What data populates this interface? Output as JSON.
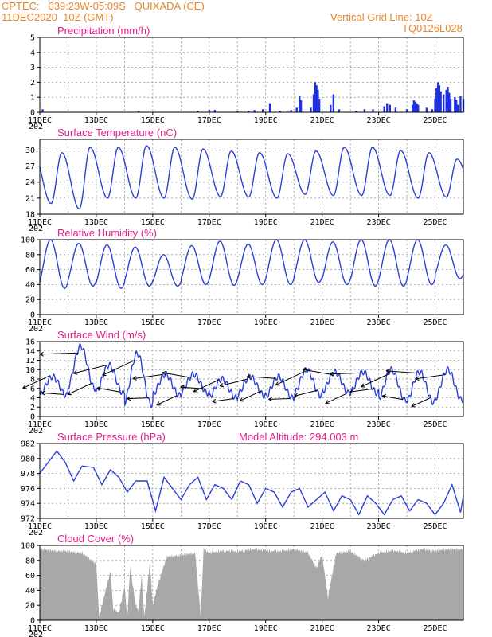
{
  "header": {
    "left_line1": "CPTEC:   039:23W-05:09S   QUIXADA (CE)",
    "left_line2": "11DEC2020  10Z (GMT)",
    "right_line1": "Vertical Grid Line: 10Z",
    "right_line2": "TQ0126L028"
  },
  "x_axis": {
    "ticks": [
      "11DEC",
      "13DEC",
      "15DEC",
      "17DEC",
      "19DEC",
      "21DEC",
      "23DEC",
      "25DEC"
    ],
    "partial_year_label": "202"
  },
  "panels": [
    {
      "id": "precip",
      "title": "Precipitation (mm/h)",
      "yticks": [
        "0",
        "1",
        "2",
        "3",
        "4",
        "5"
      ]
    },
    {
      "id": "temp",
      "title": "Surface Temperature (nC)",
      "yticks": [
        "18",
        "21",
        "24",
        "27",
        "30"
      ]
    },
    {
      "id": "rh",
      "title": "Relative Humidity (%)",
      "yticks": [
        "0",
        "20",
        "40",
        "60",
        "80",
        "100"
      ]
    },
    {
      "id": "wind",
      "title": "Surface Wind (m/s)",
      "yticks": [
        "0",
        "2",
        "4",
        "6",
        "8",
        "10",
        "12",
        "14",
        "16"
      ]
    },
    {
      "id": "pres",
      "title": "Surface Pressure (hPa)",
      "extra": "Model Altitude: 294.003 m",
      "yticks": [
        "972",
        "974",
        "976",
        "978",
        "980",
        "982"
      ]
    },
    {
      "id": "cloud",
      "title": "Cloud Cover (%)",
      "yticks": [
        "0",
        "20",
        "40",
        "60",
        "80",
        "100"
      ]
    }
  ],
  "colors": {
    "header": "#e8872a",
    "title": "#e0208c",
    "series": "#2b3fd6",
    "bars": "#2030e0",
    "cloud": "#a8a8a8"
  },
  "chart_data": [
    {
      "type": "bar",
      "title": "Precipitation (mm/h)",
      "ylim": [
        0,
        5
      ],
      "x_unit": "days since 11DEC2020 00Z",
      "points": [
        [
          0.1,
          0.2
        ],
        [
          3.5,
          0.05
        ],
        [
          5.6,
          0.1
        ],
        [
          6.0,
          0.15
        ],
        [
          6.2,
          0.15
        ],
        [
          7.0,
          0.05
        ],
        [
          7.4,
          0.1
        ],
        [
          7.6,
          0.15
        ],
        [
          7.9,
          0.2
        ],
        [
          8.15,
          0.6
        ],
        [
          8.5,
          0.1
        ],
        [
          8.9,
          0.15
        ],
        [
          9.1,
          0.3
        ],
        [
          9.2,
          1.1
        ],
        [
          9.25,
          0.8
        ],
        [
          9.6,
          0.3
        ],
        [
          9.7,
          1.2
        ],
        [
          9.75,
          2.0
        ],
        [
          9.8,
          1.8
        ],
        [
          9.85,
          1.5
        ],
        [
          9.9,
          0.9
        ],
        [
          10.3,
          0.5
        ],
        [
          10.4,
          1.2
        ],
        [
          10.6,
          0.2
        ],
        [
          11.2,
          0.1
        ],
        [
          11.5,
          0.2
        ],
        [
          11.8,
          0.2
        ],
        [
          12.2,
          0.4
        ],
        [
          12.3,
          0.6
        ],
        [
          12.4,
          0.5
        ],
        [
          12.6,
          0.3
        ],
        [
          13.0,
          0.2
        ],
        [
          13.2,
          0.5
        ],
        [
          13.25,
          0.8
        ],
        [
          13.3,
          0.7
        ],
        [
          13.35,
          0.6
        ],
        [
          13.4,
          0.5
        ],
        [
          13.7,
          0.3
        ],
        [
          13.9,
          0.2
        ],
        [
          14.0,
          0.9
        ],
        [
          14.05,
          1.6
        ],
        [
          14.1,
          2.0
        ],
        [
          14.15,
          1.8
        ],
        [
          14.2,
          1.4
        ],
        [
          14.3,
          1.2
        ],
        [
          14.4,
          1.5
        ],
        [
          14.45,
          1.7
        ],
        [
          14.5,
          1.3
        ],
        [
          14.55,
          0.9
        ],
        [
          14.7,
          1.0
        ],
        [
          14.75,
          0.8
        ],
        [
          14.8,
          0.5
        ],
        [
          14.9,
          1.1
        ],
        [
          15.0,
          0.9
        ]
      ]
    },
    {
      "type": "line",
      "title": "Surface Temperature (nC)",
      "ylim": [
        18,
        32
      ],
      "x_unit": "days since 11DEC2020 00Z",
      "daily_max": [
        29.5,
        30.5,
        30.5,
        30.8,
        30.5,
        30.2,
        29.8,
        29.5,
        29.3,
        29.8,
        30.5,
        30.5,
        29.9,
        29.5,
        28.3
      ],
      "daily_min": [
        20.0,
        19.0,
        21.0,
        21.0,
        21.0,
        20.8,
        21.3,
        21.2,
        21.0,
        21.7,
        21.5,
        21.5,
        21.5,
        21.0,
        21.2
      ]
    },
    {
      "type": "line",
      "title": "Relative Humidity (%)",
      "ylim": [
        0,
        100
      ],
      "x_unit": "days since 11DEC2020 00Z",
      "daily_max": [
        100,
        95,
        93,
        90,
        80,
        92,
        98,
        94,
        100,
        100,
        97,
        100,
        100,
        100,
        93
      ],
      "daily_min": [
        35,
        38,
        35,
        38,
        38,
        40,
        39,
        40,
        40,
        43,
        40,
        38,
        38,
        40,
        48
      ]
    },
    {
      "type": "line",
      "title": "Surface Wind (m/s)",
      "ylim": [
        0,
        16
      ],
      "x_unit": "days since 11DEC2020 00Z",
      "daily_max": [
        8.5,
        15.0,
        11.0,
        13.5,
        9.0,
        9.0,
        8.0,
        8.5,
        8.5,
        10.0,
        9.5,
        9.5,
        10.0,
        9.5,
        10.0
      ],
      "daily_min": [
        4.5,
        6.0,
        5.0,
        2.5,
        4.5,
        5.0,
        4.0,
        4.5,
        4.0,
        4.5,
        5.0,
        5.0,
        3.5,
        3.0,
        3.5
      ]
    },
    {
      "type": "line",
      "title": "Surface Pressure (hPa)",
      "ylim": [
        972,
        982
      ],
      "x_unit": "days since 11DEC2020 00Z",
      "points": [
        [
          0.0,
          978.0
        ],
        [
          0.3,
          979.5
        ],
        [
          0.6,
          981.0
        ],
        [
          0.9,
          979.5
        ],
        [
          1.2,
          977.0
        ],
        [
          1.5,
          979.0
        ],
        [
          1.9,
          978.8
        ],
        [
          2.2,
          976.5
        ],
        [
          2.5,
          978.5
        ],
        [
          2.8,
          977.5
        ],
        [
          3.1,
          975.5
        ],
        [
          3.4,
          977.0
        ],
        [
          3.8,
          977.0
        ],
        [
          4.1,
          973.0
        ],
        [
          4.4,
          977.5
        ],
        [
          4.7,
          976.0
        ],
        [
          5.0,
          974.5
        ],
        [
          5.3,
          976.5
        ],
        [
          5.6,
          977.5
        ],
        [
          5.9,
          974.5
        ],
        [
          6.2,
          976.5
        ],
        [
          6.5,
          976.0
        ],
        [
          6.8,
          974.5
        ],
        [
          7.1,
          977.0
        ],
        [
          7.4,
          976.5
        ],
        [
          7.7,
          974.0
        ],
        [
          8.0,
          976.0
        ],
        [
          8.3,
          975.5
        ],
        [
          8.6,
          973.5
        ],
        [
          8.9,
          975.5
        ],
        [
          9.2,
          976.0
        ],
        [
          9.5,
          973.5
        ],
        [
          9.8,
          974.5
        ],
        [
          10.1,
          975.5
        ],
        [
          10.4,
          973.0
        ],
        [
          10.7,
          975.0
        ],
        [
          11.0,
          974.5
        ],
        [
          11.3,
          972.5
        ],
        [
          11.6,
          975.0
        ],
        [
          11.9,
          974.0
        ],
        [
          12.2,
          972.5
        ],
        [
          12.5,
          974.5
        ],
        [
          12.8,
          975.0
        ],
        [
          13.1,
          973.0
        ],
        [
          13.4,
          974.5
        ],
        [
          13.7,
          974.0
        ],
        [
          14.0,
          972.5
        ],
        [
          14.3,
          974.0
        ],
        [
          14.6,
          976.5
        ],
        [
          14.9,
          972.8
        ],
        [
          15.0,
          975.0
        ]
      ]
    },
    {
      "type": "area",
      "title": "Cloud Cover (%)",
      "ylim": [
        0,
        100
      ],
      "x_unit": "days since 11DEC2020 00Z",
      "points": [
        [
          0.0,
          95
        ],
        [
          0.5,
          93
        ],
        [
          1.0,
          92
        ],
        [
          1.5,
          90
        ],
        [
          2.0,
          75
        ],
        [
          2.1,
          5
        ],
        [
          2.3,
          35
        ],
        [
          2.5,
          65
        ],
        [
          2.6,
          15
        ],
        [
          2.8,
          10
        ],
        [
          3.0,
          45
        ],
        [
          3.1,
          5
        ],
        [
          3.2,
          70
        ],
        [
          3.4,
          20
        ],
        [
          3.5,
          12
        ],
        [
          3.6,
          60
        ],
        [
          3.7,
          5
        ],
        [
          3.9,
          78
        ],
        [
          4.0,
          20
        ],
        [
          4.2,
          50
        ],
        [
          4.5,
          85
        ],
        [
          5.0,
          87
        ],
        [
          5.5,
          90
        ],
        [
          5.7,
          5
        ],
        [
          5.8,
          95
        ],
        [
          6.0,
          90
        ],
        [
          6.5,
          93
        ],
        [
          7.0,
          92
        ],
        [
          7.5,
          95
        ],
        [
          8.0,
          93
        ],
        [
          8.5,
          92
        ],
        [
          9.0,
          95
        ],
        [
          9.5,
          90
        ],
        [
          9.8,
          70
        ],
        [
          10.0,
          88
        ],
        [
          10.2,
          30
        ],
        [
          10.5,
          90
        ],
        [
          11.0,
          92
        ],
        [
          11.5,
          80
        ],
        [
          12.0,
          90
        ],
        [
          12.5,
          93
        ],
        [
          13.0,
          90
        ],
        [
          13.5,
          95
        ],
        [
          14.0,
          93
        ],
        [
          14.5,
          95
        ],
        [
          15.0,
          95
        ]
      ]
    }
  ]
}
